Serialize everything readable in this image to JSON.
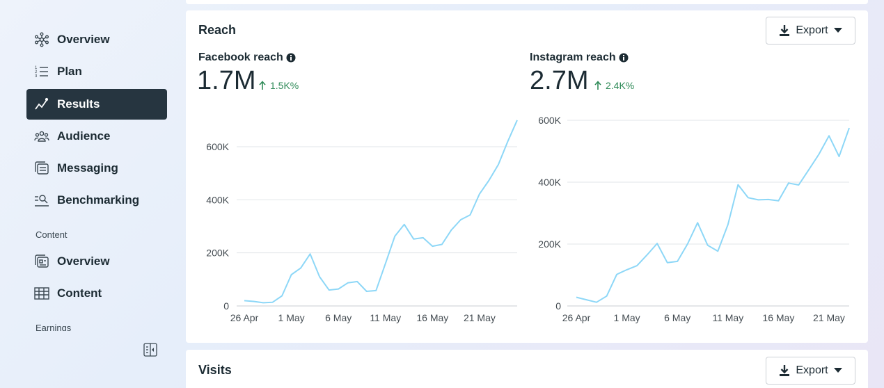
{
  "sidebar": {
    "items": [
      {
        "label": "Overview",
        "icon": "overview-network-icon",
        "active": false
      },
      {
        "label": "Plan",
        "icon": "list-icon",
        "active": false
      },
      {
        "label": "Results",
        "icon": "trend-icon",
        "active": true
      },
      {
        "label": "Audience",
        "icon": "audience-icon",
        "active": false
      },
      {
        "label": "Messaging",
        "icon": "messaging-icon",
        "active": false
      },
      {
        "label": "Benchmarking",
        "icon": "benchmark-search-icon",
        "active": false
      }
    ],
    "content_section": "Content",
    "content_items": [
      {
        "label": "Overview",
        "icon": "content-overview-icon"
      },
      {
        "label": "Content",
        "icon": "table-icon"
      }
    ],
    "earnings_section": "Earnings"
  },
  "reach": {
    "title": "Reach",
    "export_label": "Export",
    "facebook": {
      "title": "Facebook reach",
      "value": "1.7M",
      "delta": "1.5K%"
    },
    "instagram": {
      "title": "Instagram reach",
      "value": "2.7M",
      "delta": "2.4K%"
    }
  },
  "visits": {
    "title": "Visits",
    "export_label": "Export"
  },
  "colors": {
    "line": "#8dd7f7",
    "active_nav": "#263540",
    "positive": "#2e8a57"
  },
  "chart_data": [
    {
      "type": "line",
      "title": "Facebook reach",
      "x_ticks": [
        "26 Apr",
        "1 May",
        "6 May",
        "11 May",
        "16 May",
        "21 May"
      ],
      "x": [
        "26 Apr",
        "27 Apr",
        "28 Apr",
        "29 Apr",
        "30 Apr",
        "1 May",
        "2 May",
        "3 May",
        "4 May",
        "5 May",
        "6 May",
        "7 May",
        "8 May",
        "9 May",
        "10 May",
        "11 May",
        "12 May",
        "13 May",
        "14 May",
        "15 May",
        "16 May",
        "17 May",
        "18 May",
        "19 May",
        "20 May",
        "21 May",
        "22 May",
        "23 May",
        "24 May",
        "25 May"
      ],
      "values": [
        20000,
        17000,
        12000,
        14000,
        38000,
        118000,
        143000,
        196000,
        110000,
        60000,
        64000,
        87000,
        92000,
        55000,
        58000,
        160000,
        263000,
        307000,
        252000,
        257000,
        225000,
        232000,
        286000,
        325000,
        343000,
        422000,
        473000,
        533000,
        620000,
        700000
      ],
      "y_ticks": [
        "0",
        "200K",
        "400K",
        "600K"
      ],
      "ylim": [
        0,
        700000
      ],
      "grid": true
    },
    {
      "type": "line",
      "title": "Instagram reach",
      "x_ticks": [
        "26 Apr",
        "1 May",
        "6 May",
        "11 May",
        "16 May",
        "21 May"
      ],
      "x": [
        "26 Apr",
        "27 Apr",
        "28 Apr",
        "29 Apr",
        "30 Apr",
        "1 May",
        "2 May",
        "3 May",
        "4 May",
        "5 May",
        "6 May",
        "7 May",
        "8 May",
        "9 May",
        "10 May",
        "11 May",
        "12 May",
        "13 May",
        "14 May",
        "15 May",
        "16 May",
        "17 May",
        "18 May",
        "19 May",
        "20 May",
        "21 May",
        "22 May",
        "23 May"
      ],
      "values": [
        28000,
        20000,
        12000,
        32000,
        102000,
        117000,
        130000,
        165000,
        202000,
        140000,
        144000,
        200000,
        269000,
        196000,
        177000,
        263000,
        392000,
        350000,
        343000,
        344000,
        340000,
        397000,
        391000,
        440000,
        490000,
        550000,
        483000,
        575000
      ],
      "y_ticks": [
        "0",
        "200K",
        "400K",
        "600K"
      ],
      "ylim": [
        0,
        600000
      ],
      "grid": true
    }
  ]
}
